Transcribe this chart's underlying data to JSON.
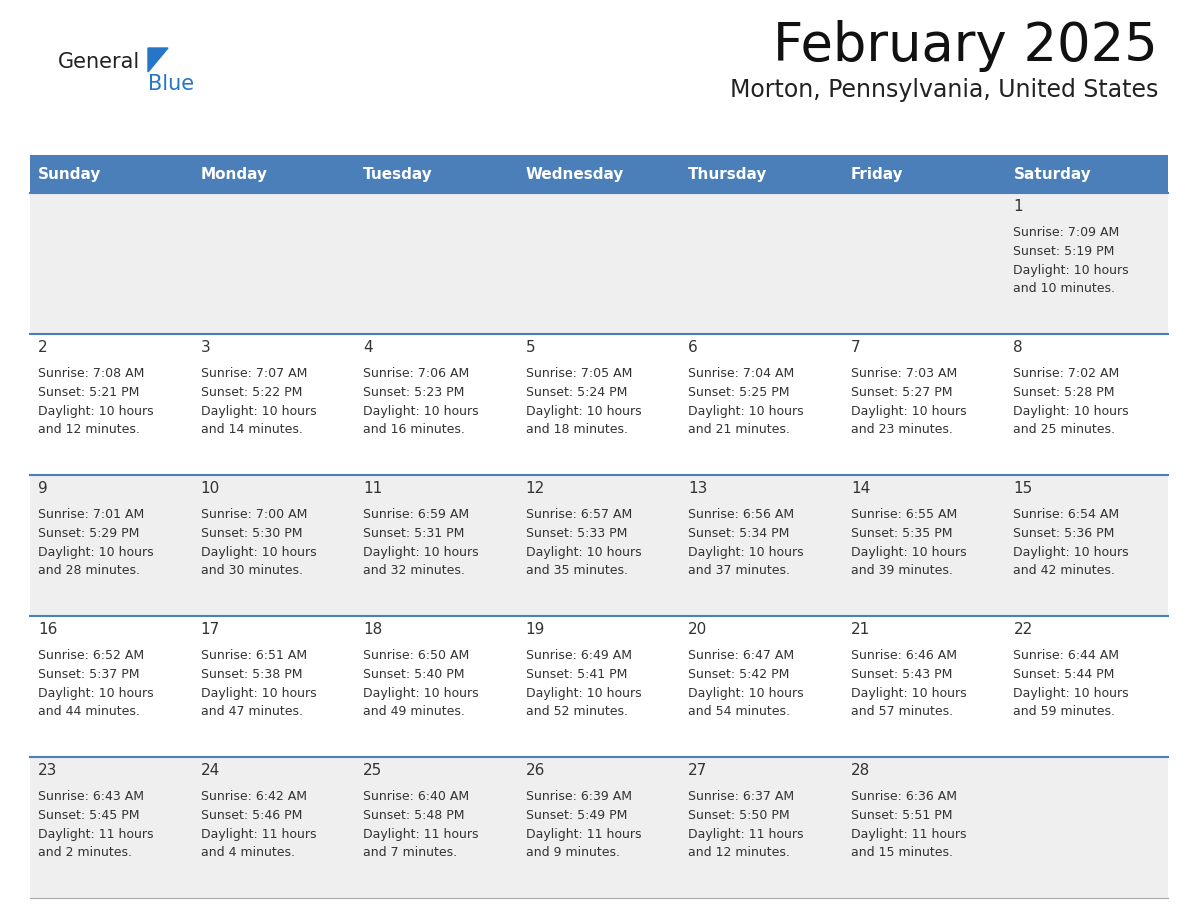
{
  "title": "February 2025",
  "subtitle": "Morton, Pennsylvania, United States",
  "days_of_week": [
    "Sunday",
    "Monday",
    "Tuesday",
    "Wednesday",
    "Thursday",
    "Friday",
    "Saturday"
  ],
  "header_bg": "#4a7fba",
  "header_text": "#ffffff",
  "row0_bg": "#e8e8e8",
  "odd_row_bg": "#efefef",
  "even_row_bg": "#ffffff",
  "separator_color": "#4a7fba",
  "text_color": "#333333",
  "logo_general_color": "#222222",
  "logo_blue_color": "#2676c8",
  "calendar_data": [
    {
      "day": 1,
      "col": 6,
      "row": 0,
      "sunrise": "7:09 AM",
      "sunset": "5:19 PM",
      "daylight": "10 hours and 10 minutes."
    },
    {
      "day": 2,
      "col": 0,
      "row": 1,
      "sunrise": "7:08 AM",
      "sunset": "5:21 PM",
      "daylight": "10 hours and 12 minutes."
    },
    {
      "day": 3,
      "col": 1,
      "row": 1,
      "sunrise": "7:07 AM",
      "sunset": "5:22 PM",
      "daylight": "10 hours and 14 minutes."
    },
    {
      "day": 4,
      "col": 2,
      "row": 1,
      "sunrise": "7:06 AM",
      "sunset": "5:23 PM",
      "daylight": "10 hours and 16 minutes."
    },
    {
      "day": 5,
      "col": 3,
      "row": 1,
      "sunrise": "7:05 AM",
      "sunset": "5:24 PM",
      "daylight": "10 hours and 18 minutes."
    },
    {
      "day": 6,
      "col": 4,
      "row": 1,
      "sunrise": "7:04 AM",
      "sunset": "5:25 PM",
      "daylight": "10 hours and 21 minutes."
    },
    {
      "day": 7,
      "col": 5,
      "row": 1,
      "sunrise": "7:03 AM",
      "sunset": "5:27 PM",
      "daylight": "10 hours and 23 minutes."
    },
    {
      "day": 8,
      "col": 6,
      "row": 1,
      "sunrise": "7:02 AM",
      "sunset": "5:28 PM",
      "daylight": "10 hours and 25 minutes."
    },
    {
      "day": 9,
      "col": 0,
      "row": 2,
      "sunrise": "7:01 AM",
      "sunset": "5:29 PM",
      "daylight": "10 hours and 28 minutes."
    },
    {
      "day": 10,
      "col": 1,
      "row": 2,
      "sunrise": "7:00 AM",
      "sunset": "5:30 PM",
      "daylight": "10 hours and 30 minutes."
    },
    {
      "day": 11,
      "col": 2,
      "row": 2,
      "sunrise": "6:59 AM",
      "sunset": "5:31 PM",
      "daylight": "10 hours and 32 minutes."
    },
    {
      "day": 12,
      "col": 3,
      "row": 2,
      "sunrise": "6:57 AM",
      "sunset": "5:33 PM",
      "daylight": "10 hours and 35 minutes."
    },
    {
      "day": 13,
      "col": 4,
      "row": 2,
      "sunrise": "6:56 AM",
      "sunset": "5:34 PM",
      "daylight": "10 hours and 37 minutes."
    },
    {
      "day": 14,
      "col": 5,
      "row": 2,
      "sunrise": "6:55 AM",
      "sunset": "5:35 PM",
      "daylight": "10 hours and 39 minutes."
    },
    {
      "day": 15,
      "col": 6,
      "row": 2,
      "sunrise": "6:54 AM",
      "sunset": "5:36 PM",
      "daylight": "10 hours and 42 minutes."
    },
    {
      "day": 16,
      "col": 0,
      "row": 3,
      "sunrise": "6:52 AM",
      "sunset": "5:37 PM",
      "daylight": "10 hours and 44 minutes."
    },
    {
      "day": 17,
      "col": 1,
      "row": 3,
      "sunrise": "6:51 AM",
      "sunset": "5:38 PM",
      "daylight": "10 hours and 47 minutes."
    },
    {
      "day": 18,
      "col": 2,
      "row": 3,
      "sunrise": "6:50 AM",
      "sunset": "5:40 PM",
      "daylight": "10 hours and 49 minutes."
    },
    {
      "day": 19,
      "col": 3,
      "row": 3,
      "sunrise": "6:49 AM",
      "sunset": "5:41 PM",
      "daylight": "10 hours and 52 minutes."
    },
    {
      "day": 20,
      "col": 4,
      "row": 3,
      "sunrise": "6:47 AM",
      "sunset": "5:42 PM",
      "daylight": "10 hours and 54 minutes."
    },
    {
      "day": 21,
      "col": 5,
      "row": 3,
      "sunrise": "6:46 AM",
      "sunset": "5:43 PM",
      "daylight": "10 hours and 57 minutes."
    },
    {
      "day": 22,
      "col": 6,
      "row": 3,
      "sunrise": "6:44 AM",
      "sunset": "5:44 PM",
      "daylight": "10 hours and 59 minutes."
    },
    {
      "day": 23,
      "col": 0,
      "row": 4,
      "sunrise": "6:43 AM",
      "sunset": "5:45 PM",
      "daylight": "11 hours and 2 minutes."
    },
    {
      "day": 24,
      "col": 1,
      "row": 4,
      "sunrise": "6:42 AM",
      "sunset": "5:46 PM",
      "daylight": "11 hours and 4 minutes."
    },
    {
      "day": 25,
      "col": 2,
      "row": 4,
      "sunrise": "6:40 AM",
      "sunset": "5:48 PM",
      "daylight": "11 hours and 7 minutes."
    },
    {
      "day": 26,
      "col": 3,
      "row": 4,
      "sunrise": "6:39 AM",
      "sunset": "5:49 PM",
      "daylight": "11 hours and 9 minutes."
    },
    {
      "day": 27,
      "col": 4,
      "row": 4,
      "sunrise": "6:37 AM",
      "sunset": "5:50 PM",
      "daylight": "11 hours and 12 minutes."
    },
    {
      "day": 28,
      "col": 5,
      "row": 4,
      "sunrise": "6:36 AM",
      "sunset": "5:51 PM",
      "daylight": "11 hours and 15 minutes."
    }
  ]
}
